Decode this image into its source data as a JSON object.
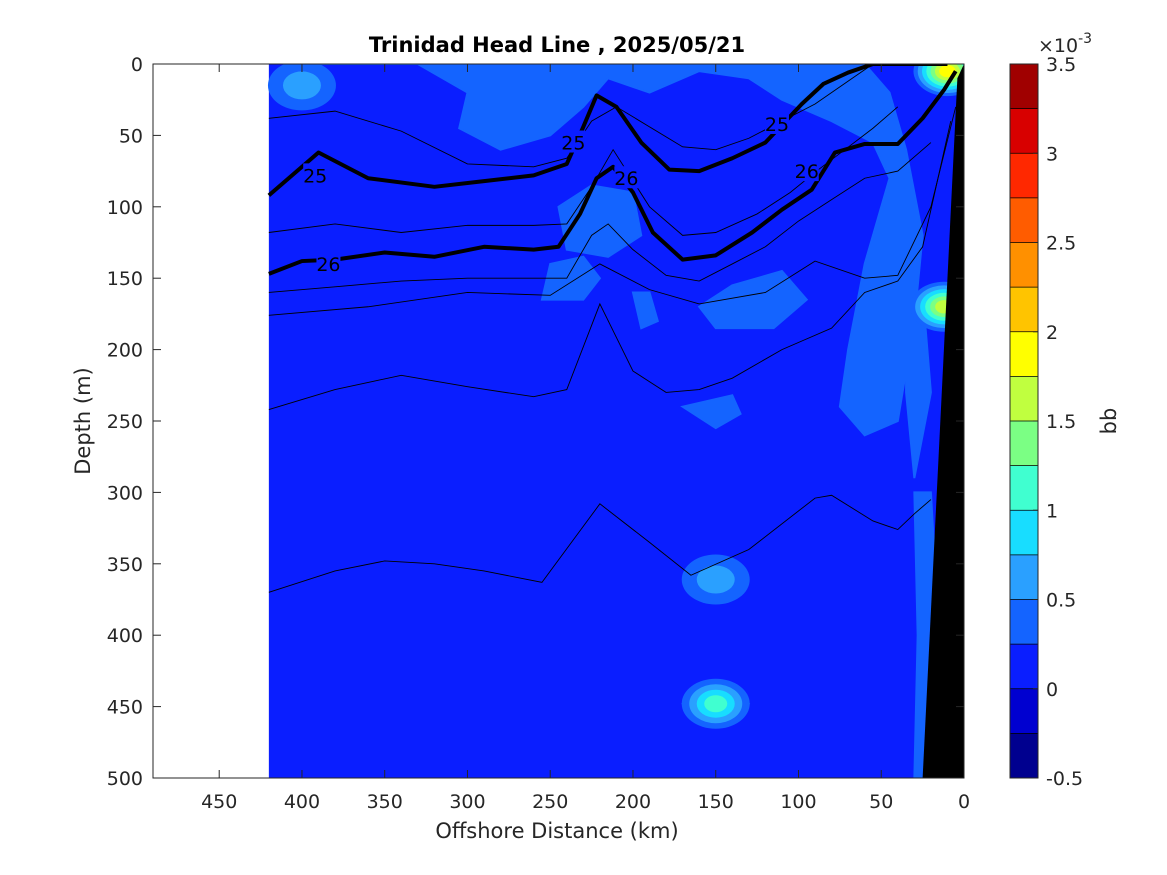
{
  "chart_data": {
    "type": "heatmap",
    "title": "Trinidad Head Line , 2025/05/21",
    "xlabel": "Offshore Distance (km)",
    "ylabel": "Depth (m)",
    "xlim": [
      490,
      0
    ],
    "ylim": [
      0,
      500
    ],
    "x_reversed": true,
    "y_reversed": true,
    "x_ticks": [
      "450",
      "400",
      "350",
      "300",
      "250",
      "200",
      "150",
      "100",
      "50",
      "0"
    ],
    "y_ticks": [
      "0",
      "50",
      "100",
      "150",
      "200",
      "250",
      "300",
      "350",
      "400",
      "450",
      "500"
    ],
    "colorbar": {
      "label": "bb",
      "exponent_label": "×10",
      "exponent": "-3",
      "range": [
        -0.5,
        3.5
      ],
      "levels": [
        -0.5,
        -0.25,
        0,
        0.25,
        0.5,
        0.75,
        1,
        1.25,
        1.5,
        1.75,
        2,
        2.25,
        2.5,
        2.75,
        3,
        3.25,
        3.5
      ],
      "colors": [
        "#00008f",
        "#0000d0",
        "#0a1eff",
        "#1464ff",
        "#2aa0ff",
        "#18ddff",
        "#40ffd0",
        "#7bff84",
        "#c0ff3f",
        "#ffff00",
        "#ffc400",
        "#ff9000",
        "#ff5c00",
        "#ff2800",
        "#d80000",
        "#a00000"
      ],
      "ticks": [
        "-0.5",
        "0",
        "0.5",
        "1",
        "1.5",
        "2",
        "2.5",
        "3",
        "3.5"
      ]
    },
    "data_extent_km": [
      420,
      0
    ],
    "background_level": 0.1,
    "features": [
      {
        "x": 150,
        "y": 448,
        "peak": 1.2
      },
      {
        "x": 150,
        "y": 361,
        "peak": 0.6
      },
      {
        "x": 400,
        "y": 15,
        "peak": 0.6
      },
      {
        "x": 10,
        "y": 5,
        "peak": 1.8
      },
      {
        "x": 12,
        "y": 170,
        "peak": 1.6
      }
    ],
    "density_contours": [
      {
        "label": "25",
        "x": [
          420,
          390,
          360,
          320,
          290,
          260,
          240,
          230,
          222,
          210,
          195,
          178,
          160,
          140,
          120,
          98,
          85,
          70,
          55,
          35,
          18,
          10
        ],
        "y": [
          92,
          62,
          80,
          86,
          82,
          78,
          70,
          44,
          22,
          30,
          55,
          74,
          75,
          66,
          55,
          28,
          14,
          6,
          0,
          0,
          0,
          0
        ]
      },
      {
        "label": "26",
        "x": [
          420,
          400,
          380,
          350,
          320,
          290,
          260,
          245,
          232,
          222,
          212,
          200,
          188,
          170,
          150,
          128,
          110,
          92,
          78,
          60,
          40,
          25,
          12,
          5
        ],
        "y": [
          147,
          138,
          137,
          132,
          135,
          128,
          130,
          128,
          105,
          80,
          72,
          90,
          118,
          137,
          134,
          118,
          102,
          88,
          62,
          56,
          56,
          38,
          18,
          5
        ]
      }
    ],
    "contour_labels": [
      {
        "text": "25",
        "x": 392,
        "y": 78
      },
      {
        "text": "25",
        "x": 236,
        "y": 55
      },
      {
        "text": "25",
        "x": 113,
        "y": 42
      },
      {
        "text": "26",
        "x": 384,
        "y": 140
      },
      {
        "text": "26",
        "x": 204,
        "y": 80
      },
      {
        "text": "26",
        "x": 95,
        "y": 75
      }
    ],
    "thin_contours": [
      {
        "x": [
          420,
          360,
          300,
          250,
          220,
          190,
          160,
          120,
          90,
          60,
          40,
          20,
          5
        ],
        "y": [
          176,
          170,
          160,
          162,
          140,
          158,
          168,
          160,
          138,
          150,
          148,
          100,
          30
        ]
      },
      {
        "x": [
          420,
          380,
          340,
          300,
          260,
          240,
          220,
          200,
          180,
          160,
          140,
          110,
          80,
          60,
          40,
          25,
          8
        ],
        "y": [
          242,
          228,
          218,
          226,
          233,
          228,
          168,
          215,
          230,
          228,
          220,
          200,
          185,
          160,
          152,
          128,
          40
        ]
      },
      {
        "x": [
          420,
          380,
          350,
          320,
          290,
          255,
          220,
          190,
          165,
          130,
          90,
          80,
          55,
          40,
          30,
          20
        ],
        "y": [
          370,
          355,
          348,
          350,
          355,
          363,
          308,
          335,
          358,
          340,
          304,
          302,
          320,
          326,
          315,
          305
        ]
      },
      {
        "x": [
          420,
          380,
          340,
          300,
          260,
          240,
          225,
          210,
          190,
          170,
          150,
          130,
          110,
          90,
          70,
          55
        ],
        "y": [
          38,
          33,
          47,
          70,
          72,
          66,
          40,
          30,
          44,
          58,
          60,
          52,
          40,
          28,
          12,
          0
        ]
      },
      {
        "x": [
          420,
          380,
          340,
          300,
          260,
          240,
          225,
          212,
          190,
          170,
          150,
          125,
          105,
          88,
          72,
          55,
          40
        ],
        "y": [
          118,
          112,
          118,
          113,
          113,
          112,
          86,
          60,
          100,
          120,
          118,
          105,
          90,
          74,
          60,
          45,
          30
        ]
      },
      {
        "x": [
          420,
          380,
          340,
          300,
          260,
          240,
          225,
          215,
          200,
          180,
          160,
          140,
          120,
          100,
          80,
          60,
          40,
          20
        ],
        "y": [
          160,
          156,
          152,
          150,
          150,
          150,
          120,
          112,
          130,
          148,
          152,
          140,
          128,
          110,
          95,
          80,
          75,
          55
        ]
      }
    ]
  }
}
